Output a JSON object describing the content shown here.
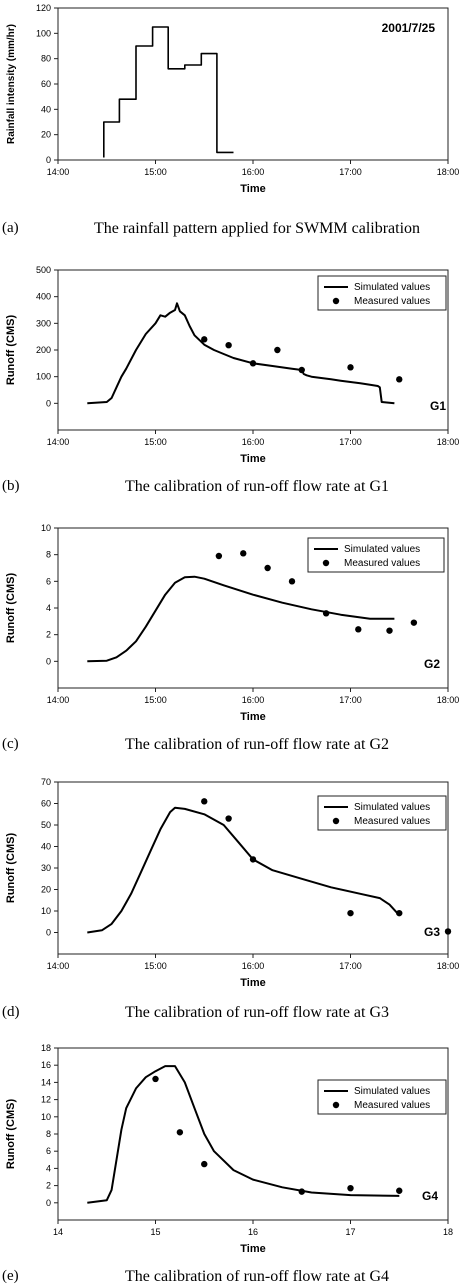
{
  "chart_data": [
    {
      "id": "a",
      "type": "line",
      "caption_letter": "(a)",
      "caption": "The rainfall pattern applied for SWMM calibration",
      "annotation": "2001/7/25",
      "xlabel": "Time",
      "ylabel": "Rainfall intensity (mm/hr)",
      "xlim": [
        14.0,
        18.0
      ],
      "ylim": [
        0,
        120
      ],
      "xticks": [
        14.0,
        15.0,
        16.0,
        17.0,
        18.0
      ],
      "xtick_labels": [
        "14:00",
        "15:00",
        "16:00",
        "17:00",
        "18:00"
      ],
      "yticks": [
        0,
        20,
        40,
        60,
        80,
        100,
        120
      ],
      "ytick_labels": [
        "0",
        "20",
        "40",
        "60",
        "80",
        "100",
        "120"
      ],
      "legend": null,
      "series": [
        {
          "kind": "step",
          "x": [
            14.47,
            14.47,
            14.63,
            14.63,
            14.8,
            14.8,
            14.97,
            14.97,
            15.13,
            15.13,
            15.3,
            15.3,
            15.47,
            15.47,
            15.63,
            15.63,
            15.8
          ],
          "y": [
            2,
            30,
            30,
            48,
            48,
            90,
            90,
            105,
            105,
            72,
            72,
            75,
            75,
            84,
            84,
            6,
            6
          ]
        }
      ]
    },
    {
      "id": "b",
      "type": "line",
      "caption_letter": "(b)",
      "caption": "The calibration of run-off flow rate at G1",
      "annotation": "G1",
      "xlabel": "Time",
      "ylabel": "Runoff (CMS)",
      "xlim": [
        14.0,
        18.0
      ],
      "ylim": [
        -100,
        500
      ],
      "xticks": [
        14.0,
        15.0,
        16.0,
        17.0,
        18.0
      ],
      "xtick_labels": [
        "14:00",
        "15:00",
        "16:00",
        "17:00",
        "18:00"
      ],
      "yticks": [
        0,
        100,
        200,
        300,
        400,
        500
      ],
      "ytick_labels": [
        "0",
        "100",
        "200",
        "300",
        "400",
        "500"
      ],
      "legend": [
        "Simulated values",
        "Measured values"
      ],
      "series": [
        {
          "name": "Simulated values",
          "kind": "line",
          "x": [
            14.3,
            14.5,
            14.55,
            14.6,
            14.65,
            14.7,
            14.8,
            14.9,
            15.0,
            15.05,
            15.1,
            15.15,
            15.2,
            15.22,
            15.25,
            15.3,
            15.35,
            15.4,
            15.5,
            15.6,
            15.7,
            15.8,
            16.0,
            16.2,
            16.4,
            16.5,
            16.52,
            16.55,
            16.6,
            16.7,
            16.8,
            16.9,
            17.0,
            17.1,
            17.2,
            17.28,
            17.3,
            17.32,
            17.45
          ],
          "y": [
            0,
            5,
            20,
            60,
            100,
            130,
            200,
            260,
            300,
            330,
            325,
            340,
            350,
            375,
            345,
            330,
            290,
            255,
            220,
            200,
            185,
            170,
            150,
            140,
            130,
            125,
            110,
            105,
            100,
            95,
            90,
            85,
            80,
            75,
            70,
            65,
            60,
            5,
            0
          ]
        },
        {
          "name": "Measured values",
          "kind": "scatter",
          "x": [
            15.5,
            15.75,
            16.0,
            16.25,
            16.5,
            17.0,
            17.5
          ],
          "y": [
            240,
            218,
            150,
            200,
            125,
            135,
            90
          ]
        }
      ]
    },
    {
      "id": "c",
      "type": "line",
      "caption_letter": "(c)",
      "caption": "The calibration of run-off flow rate at G2",
      "annotation": "G2",
      "xlabel": "Time",
      "ylabel": "Runoff (CMS)",
      "xlim": [
        14.0,
        18.0
      ],
      "ylim": [
        -2,
        10
      ],
      "xticks": [
        14.0,
        15.0,
        16.0,
        17.0,
        18.0
      ],
      "xtick_labels": [
        "14:00",
        "15:00",
        "16:00",
        "17:00",
        "18:00"
      ],
      "yticks": [
        0,
        2,
        4,
        6,
        8,
        10
      ],
      "ytick_labels": [
        "0",
        "2",
        "4",
        "6",
        "8",
        "10"
      ],
      "legend": [
        "Simulated values",
        "Measured values"
      ],
      "series": [
        {
          "name": "Simulated values",
          "kind": "line",
          "x": [
            14.3,
            14.5,
            14.6,
            14.7,
            14.8,
            14.9,
            15.0,
            15.1,
            15.2,
            15.3,
            15.4,
            15.5,
            15.7,
            16.0,
            16.3,
            16.6,
            16.9,
            17.2,
            17.45
          ],
          "y": [
            0,
            0.05,
            0.3,
            0.8,
            1.5,
            2.6,
            3.8,
            5.0,
            5.9,
            6.3,
            6.35,
            6.2,
            5.7,
            5.0,
            4.4,
            3.9,
            3.5,
            3.2,
            3.2
          ]
        },
        {
          "name": "Measured values",
          "kind": "scatter",
          "x": [
            15.65,
            15.9,
            16.15,
            16.4,
            16.75,
            17.08,
            17.4,
            17.65
          ],
          "y": [
            7.9,
            8.1,
            7.0,
            6.0,
            3.6,
            2.4,
            2.3,
            2.9
          ]
        }
      ]
    },
    {
      "id": "d",
      "type": "line",
      "caption_letter": "(d)",
      "caption": "The calibration of run-off flow rate at G3",
      "annotation": "G3",
      "xlabel": "Time",
      "ylabel": "Runoff (CMS)",
      "xlim": [
        14.0,
        18.0
      ],
      "ylim": [
        -10,
        70
      ],
      "xticks": [
        14.0,
        15.0,
        16.0,
        17.0,
        18.0
      ],
      "xtick_labels": [
        "14:00",
        "15:00",
        "16:00",
        "17:00",
        "18:00"
      ],
      "yticks": [
        0,
        10,
        20,
        30,
        40,
        50,
        60,
        70
      ],
      "ytick_labels": [
        "0",
        "10",
        "20",
        "30",
        "40",
        "50",
        "60",
        "70"
      ],
      "legend": [
        "Simulated values",
        "Measured values"
      ],
      "series": [
        {
          "name": "Simulated values",
          "kind": "line",
          "x": [
            14.3,
            14.45,
            14.55,
            14.65,
            14.75,
            14.85,
            14.95,
            15.05,
            15.15,
            15.2,
            15.3,
            15.5,
            15.7,
            15.85,
            16.0,
            16.2,
            16.5,
            16.8,
            17.1,
            17.3,
            17.4,
            17.5
          ],
          "y": [
            0,
            1,
            4,
            10,
            18,
            28,
            38,
            48,
            56,
            58,
            57.5,
            55,
            50,
            42,
            34,
            29,
            25,
            21,
            18,
            16,
            13,
            8
          ]
        },
        {
          "name": "Measured values",
          "kind": "scatter",
          "x": [
            15.5,
            15.75,
            16.0,
            17.0,
            17.5,
            18.0
          ],
          "y": [
            61,
            53,
            34,
            9,
            9,
            0.5
          ]
        }
      ]
    },
    {
      "id": "e",
      "type": "line",
      "caption_letter": "(e)",
      "caption": "The calibration of run-off flow rate at G4",
      "annotation": "G4",
      "xlabel": "Time",
      "ylabel": "Runoff (CMS)",
      "xlim": [
        14,
        18
      ],
      "ylim": [
        -2,
        18
      ],
      "xticks": [
        14,
        15,
        16,
        17,
        18
      ],
      "xtick_labels": [
        "14",
        "15",
        "16",
        "17",
        "18"
      ],
      "yticks": [
        0,
        2,
        4,
        6,
        8,
        10,
        12,
        14,
        16,
        18
      ],
      "ytick_labels": [
        "0",
        "2",
        "4",
        "6",
        "8",
        "10",
        "12",
        "14",
        "16",
        "18"
      ],
      "legend": [
        "Simulated values",
        "Measured values"
      ],
      "series": [
        {
          "name": "Simulated values",
          "kind": "line",
          "x": [
            14.3,
            14.5,
            14.55,
            14.6,
            14.65,
            14.7,
            14.8,
            14.9,
            15.0,
            15.1,
            15.2,
            15.3,
            15.4,
            15.5,
            15.6,
            15.8,
            16.0,
            16.3,
            16.6,
            17.0,
            17.5
          ],
          "y": [
            0,
            0.3,
            1.5,
            5,
            8.5,
            11,
            13.3,
            14.6,
            15.3,
            15.9,
            15.9,
            14,
            11,
            8,
            6,
            3.8,
            2.7,
            1.8,
            1.2,
            0.9,
            0.8
          ]
        },
        {
          "name": "Measured values",
          "kind": "scatter",
          "x": [
            15.0,
            15.25,
            15.5,
            16.5,
            17.0,
            17.5
          ],
          "y": [
            14.4,
            8.2,
            4.5,
            1.3,
            1.7,
            1.4
          ]
        }
      ]
    }
  ]
}
